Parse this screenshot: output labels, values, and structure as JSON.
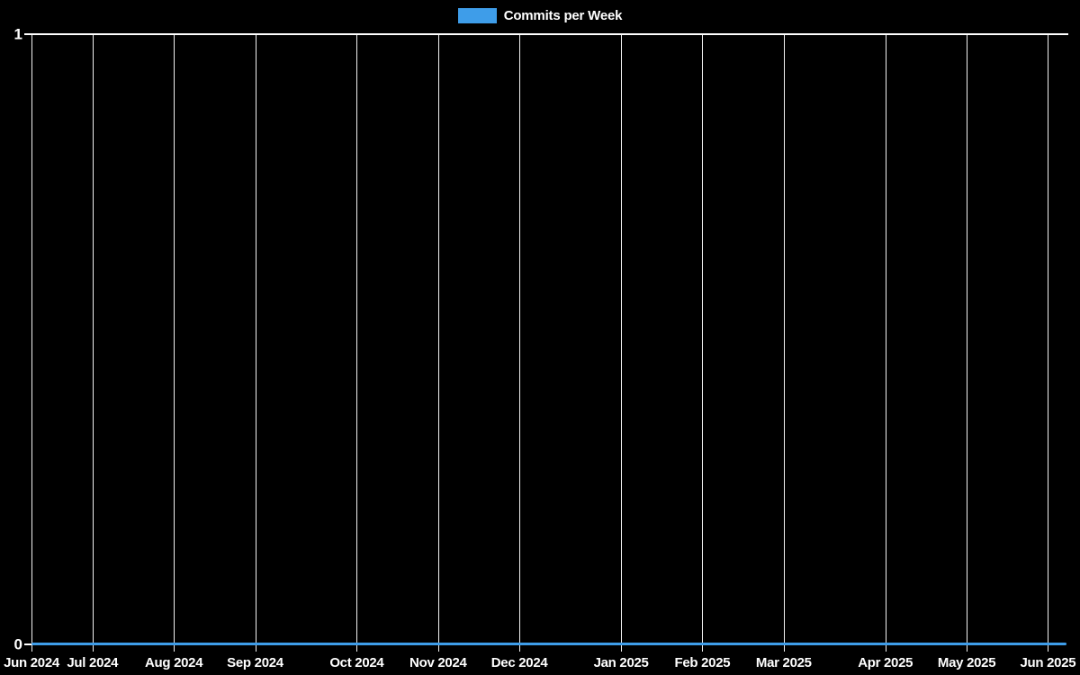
{
  "page": {
    "background_color": "#000000",
    "grid_color": "#ffffff",
    "accent_color": "#3e9de9"
  },
  "legend": {
    "label": "Commits per Week",
    "swatch_color": "#3e9de9"
  },
  "chart_data": {
    "type": "line",
    "title": "Commits per Week",
    "legend_position": "top",
    "series": [
      {
        "name": "Commits per Week",
        "color": "#3e9de9",
        "values": [
          0,
          0,
          0,
          0,
          0,
          0,
          0,
          0,
          0,
          0,
          0,
          0,
          0,
          0,
          0,
          0,
          0,
          0,
          0,
          0,
          0,
          0,
          0,
          0,
          0,
          0,
          0,
          0,
          0,
          0,
          0,
          0,
          0,
          0,
          0,
          0,
          0,
          0,
          0,
          0,
          0,
          0,
          0,
          0,
          0,
          0,
          0,
          0,
          0,
          0,
          0,
          0
        ]
      }
    ],
    "x_unit": "week",
    "weeks_total": 51,
    "x_ticks": [
      {
        "label": "Jun 2024",
        "week": 0
      },
      {
        "label": "Jul 2024",
        "week": 3
      },
      {
        "label": "Aug 2024",
        "week": 7
      },
      {
        "label": "Sep 2024",
        "week": 11
      },
      {
        "label": "Oct 2024",
        "week": 16
      },
      {
        "label": "Nov 2024",
        "week": 20
      },
      {
        "label": "Dec 2024",
        "week": 24
      },
      {
        "label": "Jan 2025",
        "week": 29
      },
      {
        "label": "Feb 2025",
        "week": 33
      },
      {
        "label": "Mar 2025",
        "week": 37
      },
      {
        "label": "Apr 2025",
        "week": 42
      },
      {
        "label": "May 2025",
        "week": 46
      },
      {
        "label": "Jun 2025",
        "week": 50
      }
    ],
    "y_ticks": [
      {
        "label": "1",
        "value": 1
      },
      {
        "label": "0",
        "value": 0
      }
    ],
    "ylim": [
      0,
      1
    ],
    "grid": {
      "vertical": true,
      "horizontal": false
    }
  }
}
